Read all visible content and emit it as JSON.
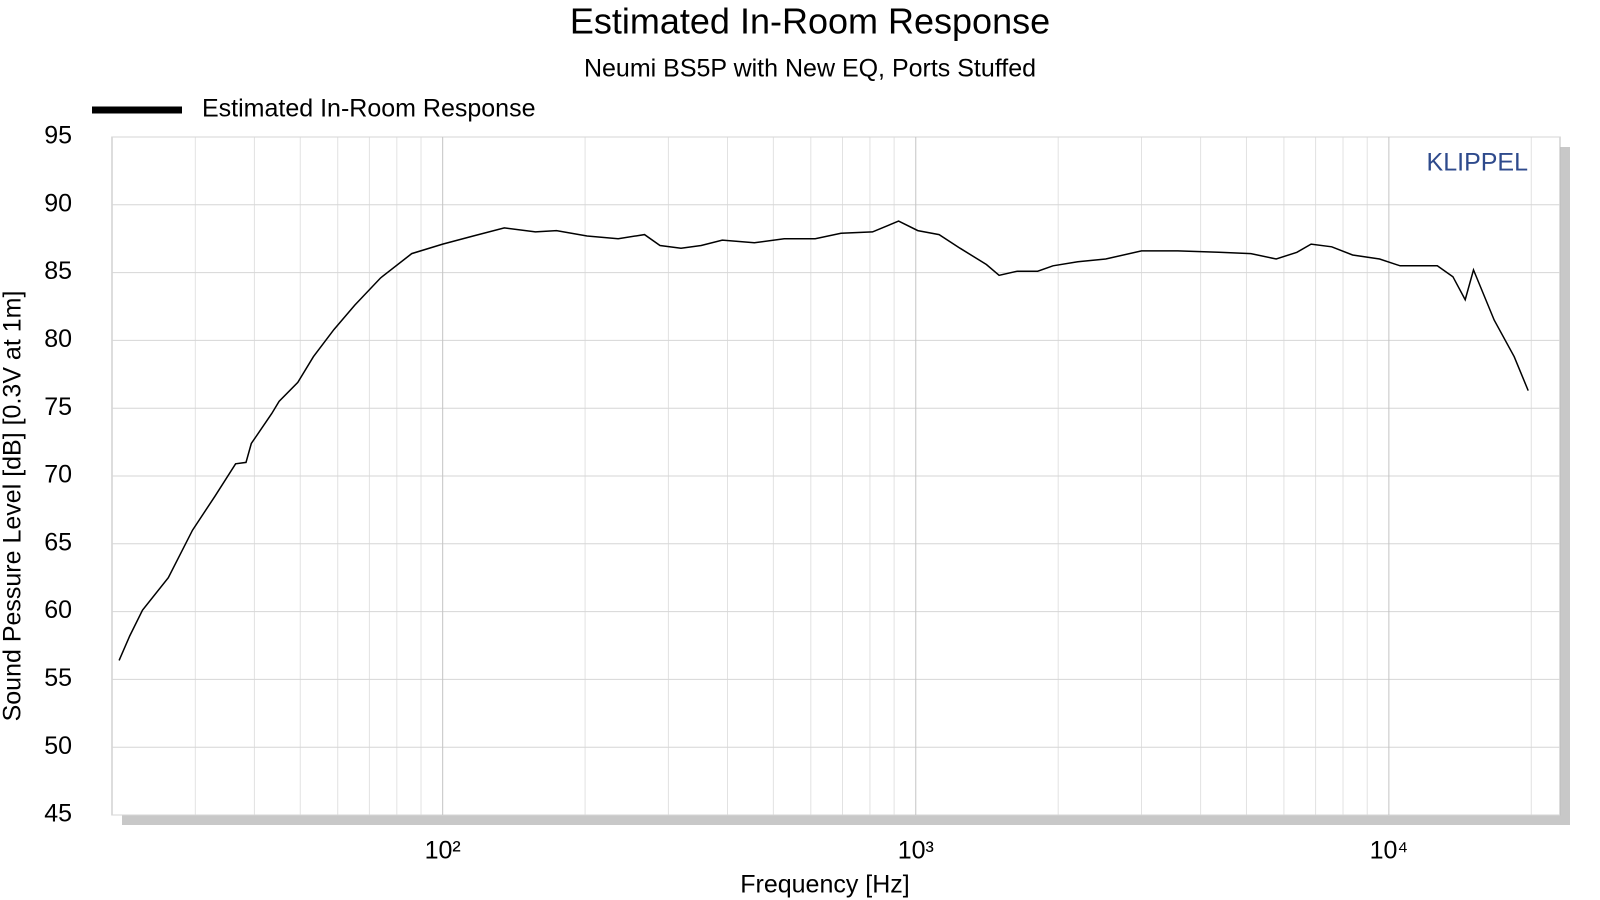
{
  "chart_data": {
    "type": "line",
    "title": "Estimated In-Room Response",
    "subtitle": "Neumi BS5P with New EQ, Ports Stuffed",
    "xlabel": "Frequency [Hz]",
    "ylabel": "Sound Pessure Level [dB] [0.3V at 1m]",
    "annotation": "KLIPPEL",
    "xscale": "log",
    "xlim": [
      20,
      23000
    ],
    "ylim": [
      45,
      95
    ],
    "xticks": [
      {
        "value": 100,
        "label": "10²"
      },
      {
        "value": 1000,
        "label": "10³"
      },
      {
        "value": 10000,
        "label": "10⁴"
      }
    ],
    "yticks": [
      45,
      50,
      55,
      60,
      65,
      70,
      75,
      80,
      85,
      90,
      95
    ],
    "grid": true,
    "minor_grid": true,
    "legend": "top-left",
    "x": [
      20.7,
      21.8,
      23.2,
      26.3,
      29.6,
      33.0,
      36.5,
      38.4,
      39.4,
      43.5,
      45.1,
      49.4,
      53.3,
      58.9,
      65.2,
      73.9,
      86,
      100,
      116,
      135,
      157,
      174,
      202,
      235,
      267,
      288,
      319,
      352,
      390,
      456,
      527,
      613,
      695,
      810,
      920,
      1010,
      1120,
      1240,
      1410,
      1500,
      1640,
      1810,
      1950,
      2200,
      2520,
      3000,
      3580,
      4370,
      5110,
      5780,
      6390,
      6850,
      7570,
      8380,
      9560,
      10560,
      12660,
      13660,
      14500,
      15100,
      16700,
      18400,
      19700
    ],
    "series": [
      {
        "name": "Estimated In-Room Response",
        "color": "#000000",
        "values": [
          56.4,
          58.2,
          60.1,
          62.5,
          66.0,
          68.5,
          70.9,
          71.0,
          72.4,
          74.6,
          75.5,
          76.9,
          78.8,
          80.8,
          82.6,
          84.6,
          86.4,
          87.1,
          87.7,
          88.3,
          88.0,
          88.1,
          87.7,
          87.5,
          87.8,
          87.0,
          86.8,
          87.0,
          87.4,
          87.2,
          87.5,
          87.5,
          87.9,
          88.0,
          88.8,
          88.1,
          87.8,
          86.8,
          85.6,
          84.8,
          85.1,
          85.1,
          85.5,
          85.8,
          86.0,
          86.6,
          86.6,
          86.5,
          86.4,
          86.0,
          86.5,
          87.1,
          86.9,
          86.3,
          86.0,
          85.5,
          85.5,
          84.7,
          83.0,
          85.2,
          81.5,
          78.8,
          76.3
        ]
      }
    ]
  }
}
